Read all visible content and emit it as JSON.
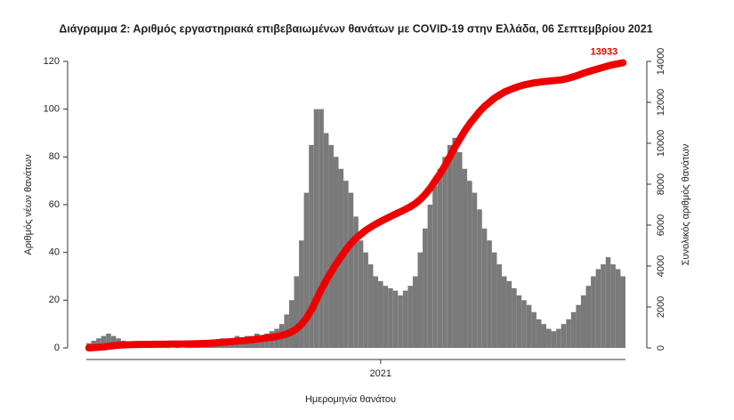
{
  "chart_data": {
    "type": "bar",
    "title": "Διάγραμμα 2: Αριθμός εργαστηριακά επιβεβαιωμένων θανάτων με COVID-19 στην Ελλάδα, 06 Σεπτεμβρίου 2021",
    "x_label": "Ημερομηνία θανάτου",
    "y_label": "Αριθμός νέων θανάτων",
    "y2_label": "Συνολικός αριθμός θανάτων",
    "categories": [
      null,
      null,
      null,
      null,
      null,
      null,
      null,
      null,
      null,
      null,
      null,
      null,
      null,
      null,
      null,
      null,
      null,
      null,
      null,
      null,
      null,
      null,
      null,
      null,
      null,
      null,
      null,
      null,
      null,
      null,
      null,
      null,
      null,
      null,
      null,
      null,
      null,
      null,
      null,
      null,
      null,
      null,
      null,
      null,
      null,
      null,
      null,
      null,
      null,
      null,
      null,
      null,
      null,
      null,
      null,
      null,
      null,
      null,
      null,
      "2021",
      null,
      null,
      null,
      null,
      null,
      null,
      null,
      null,
      null,
      null,
      null,
      null,
      null,
      null,
      null,
      null,
      null,
      null,
      null,
      null,
      null,
      null,
      null,
      null,
      null,
      null,
      null,
      null,
      null,
      null,
      null,
      null,
      null,
      null,
      null,
      null,
      null,
      null,
      null,
      null,
      null,
      null,
      null,
      null,
      null,
      null,
      null,
      null,
      null
    ],
    "series": [
      {
        "type": "bar",
        "color": "#7a7a7a",
        "values": [
          2,
          3,
          4,
          5,
          6,
          5,
          4,
          3,
          2,
          2,
          1,
          1,
          1,
          1,
          0,
          0,
          1,
          0,
          1,
          0,
          1,
          1,
          1,
          2,
          2,
          3,
          3,
          4,
          4,
          4,
          5,
          4,
          5,
          5,
          6,
          5,
          6,
          7,
          8,
          10,
          14,
          20,
          30,
          45,
          65,
          85,
          100,
          100,
          90,
          85,
          80,
          75,
          70,
          65,
          55,
          45,
          40,
          35,
          30,
          28,
          26,
          25,
          24,
          22,
          24,
          26,
          30,
          40,
          50,
          60,
          68,
          75,
          80,
          85,
          88,
          82,
          75,
          70,
          65,
          58,
          50,
          45,
          40,
          35,
          30,
          28,
          25,
          22,
          20,
          18,
          15,
          12,
          10,
          8,
          7,
          8,
          10,
          12,
          15,
          18,
          22,
          26,
          30,
          33,
          35,
          38,
          35,
          33,
          30
        ]
      },
      {
        "type": "line",
        "axis": "y2",
        "color": "#ee0000",
        "values": [
          0,
          15,
          30,
          50,
          80,
          110,
          130,
          145,
          155,
          165,
          170,
          172,
          175,
          178,
          180,
          182,
          185,
          188,
          190,
          192,
          195,
          200,
          205,
          215,
          225,
          240,
          255,
          270,
          290,
          310,
          330,
          350,
          370,
          400,
          430,
          460,
          490,
          520,
          560,
          610,
          680,
          780,
          930,
          1150,
          1450,
          1850,
          2350,
          2850,
          3300,
          3700,
          4100,
          4450,
          4800,
          5100,
          5350,
          5550,
          5750,
          5900,
          6050,
          6180,
          6300,
          6420,
          6540,
          6650,
          6770,
          6900,
          7050,
          7250,
          7500,
          7800,
          8150,
          8500,
          8900,
          9350,
          9800,
          10200,
          10600,
          10950,
          11250,
          11550,
          11800,
          12000,
          12200,
          12350,
          12500,
          12600,
          12700,
          12780,
          12850,
          12900,
          12950,
          12980,
          13010,
          13040,
          13060,
          13080,
          13120,
          13180,
          13250,
          13330,
          13420,
          13500,
          13570,
          13640,
          13710,
          13780,
          13840,
          13890,
          13933
        ]
      }
    ],
    "ylim": [
      0,
      122
    ],
    "yticks": [
      0,
      20,
      40,
      60,
      80,
      100,
      120
    ],
    "y2lim": [
      0,
      14233
    ],
    "y2ticks": [
      0,
      2000,
      4000,
      6000,
      8000,
      10000,
      12000,
      14000
    ]
  }
}
